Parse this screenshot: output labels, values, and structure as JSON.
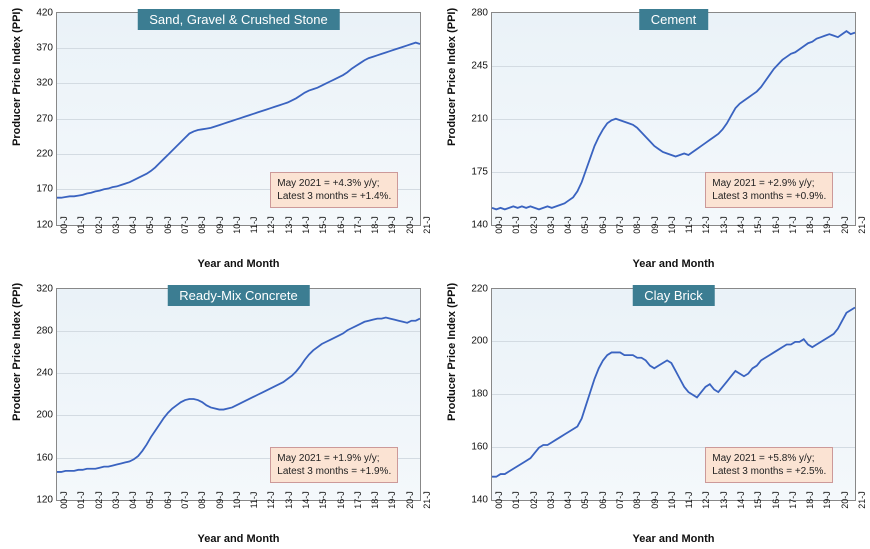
{
  "global": {
    "xlabel": "Year and Month",
    "ylabel": "Producer Price Index (PPI)",
    "x_ticks": [
      "00-J",
      "01-J",
      "02-J",
      "03-J",
      "04-J",
      "05-J",
      "06-J",
      "07-J",
      "08-J",
      "09-J",
      "10-J",
      "11-J",
      "12-J",
      "13-J",
      "14-J",
      "15-J",
      "16-J",
      "17-J",
      "18-J",
      "19-J",
      "20-J",
      "21-J"
    ],
    "line_color": "#3a63c0",
    "line_width": 1.8,
    "bg_gradient_from": "#eaf2f8",
    "bg_gradient_to": "#f4f8fb",
    "grid_color": "#d3dbe2",
    "title_bg": "#3c7d92",
    "title_fg": "#ffffff",
    "note_bg": "#fbe3d3",
    "axis_fontsize": 11,
    "tick_fontsize": 10
  },
  "panels": [
    {
      "id": "sand",
      "title": "Sand, Gravel & Crushed Stone",
      "ymin": 120,
      "ymax": 420,
      "ytick_step": 50,
      "note_line1": "May 2021 = +4.3% y/y;",
      "note_line2": "Latest 3 months = +1.4%.",
      "note_right_pct": 6,
      "note_bottom_pct": 8,
      "series": [
        158,
        158,
        159,
        160,
        160,
        161,
        162,
        164,
        165,
        167,
        168,
        170,
        171,
        173,
        174,
        176,
        178,
        180,
        183,
        186,
        189,
        192,
        196,
        201,
        207,
        213,
        219,
        225,
        231,
        237,
        243,
        249,
        252,
        254,
        255,
        256,
        257,
        259,
        261,
        263,
        265,
        267,
        269,
        271,
        273,
        275,
        277,
        279,
        281,
        283,
        285,
        287,
        289,
        291,
        293,
        296,
        299,
        303,
        307,
        310,
        312,
        314,
        317,
        320,
        323,
        326,
        329,
        332,
        336,
        341,
        345,
        349,
        353,
        356,
        358,
        360,
        362,
        364,
        366,
        368,
        370,
        372,
        374,
        376,
        378,
        376
      ]
    },
    {
      "id": "cement",
      "title": "Cement",
      "ymin": 140,
      "ymax": 280,
      "ytick_step": 35,
      "note_line1": "May 2021 = +2.9% y/y;",
      "note_line2": "Latest 3 months = +0.9%.",
      "note_right_pct": 6,
      "note_bottom_pct": 8,
      "series": [
        151,
        150,
        151,
        150,
        151,
        152,
        151,
        152,
        151,
        152,
        151,
        150,
        151,
        152,
        151,
        152,
        153,
        154,
        156,
        158,
        162,
        168,
        176,
        184,
        192,
        198,
        203,
        207,
        209,
        210,
        209,
        208,
        207,
        206,
        204,
        201,
        198,
        195,
        192,
        190,
        188,
        187,
        186,
        185,
        186,
        187,
        186,
        188,
        190,
        192,
        194,
        196,
        198,
        200,
        203,
        207,
        212,
        217,
        220,
        222,
        224,
        226,
        228,
        231,
        235,
        239,
        243,
        246,
        249,
        251,
        253,
        254,
        256,
        258,
        260,
        261,
        263,
        264,
        265,
        266,
        265,
        264,
        266,
        268,
        266,
        267
      ]
    },
    {
      "id": "readymix",
      "title": "Ready-Mix Concrete",
      "ymin": 120,
      "ymax": 320,
      "ytick_step": 40,
      "note_line1": "May 2021 = +1.9% y/y;",
      "note_line2": "Latest 3 months = +1.9%.",
      "note_right_pct": 6,
      "note_bottom_pct": 8,
      "series": [
        147,
        147,
        148,
        148,
        148,
        149,
        149,
        150,
        150,
        150,
        151,
        152,
        152,
        153,
        154,
        155,
        156,
        157,
        159,
        162,
        167,
        173,
        180,
        186,
        192,
        198,
        203,
        207,
        210,
        213,
        215,
        216,
        216,
        215,
        213,
        210,
        208,
        207,
        206,
        206,
        207,
        208,
        210,
        212,
        214,
        216,
        218,
        220,
        222,
        224,
        226,
        228,
        230,
        232,
        235,
        238,
        242,
        247,
        253,
        258,
        262,
        265,
        268,
        270,
        272,
        274,
        276,
        278,
        281,
        283,
        285,
        287,
        289,
        290,
        291,
        292,
        292,
        293,
        292,
        291,
        290,
        289,
        288,
        290,
        290,
        292
      ]
    },
    {
      "id": "claybrick",
      "title": "Clay Brick",
      "ymin": 140,
      "ymax": 220,
      "ytick_step": 20,
      "note_line1": "May 2021 = +5.8% y/y;",
      "note_line2": "Latest 3 months = +2.5%.",
      "note_right_pct": 6,
      "note_bottom_pct": 8,
      "series": [
        149,
        149,
        150,
        150,
        151,
        152,
        153,
        154,
        155,
        156,
        158,
        160,
        161,
        161,
        162,
        163,
        164,
        165,
        166,
        167,
        168,
        171,
        176,
        181,
        186,
        190,
        193,
        195,
        196,
        196,
        196,
        195,
        195,
        195,
        194,
        194,
        193,
        191,
        190,
        191,
        192,
        193,
        192,
        189,
        186,
        183,
        181,
        180,
        179,
        181,
        183,
        184,
        182,
        181,
        183,
        185,
        187,
        189,
        188,
        187,
        188,
        190,
        191,
        193,
        194,
        195,
        196,
        197,
        198,
        199,
        199,
        200,
        200,
        201,
        199,
        198,
        199,
        200,
        201,
        202,
        203,
        205,
        208,
        211,
        212,
        213
      ]
    }
  ]
}
